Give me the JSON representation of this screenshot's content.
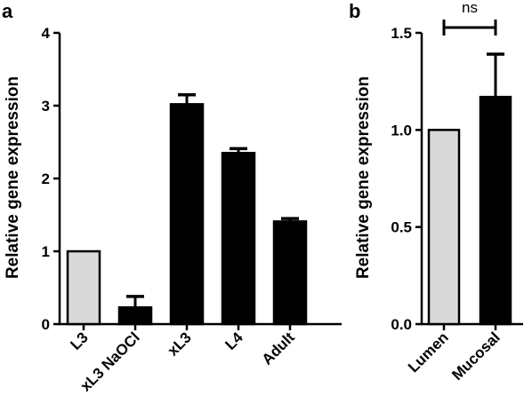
{
  "chart_data": [
    {
      "panel": "a",
      "type": "bar",
      "title": "",
      "ylabel": "Relative gene expression",
      "xlabel": "",
      "ylim": [
        0,
        4
      ],
      "yticks": [
        "0",
        "1",
        "2",
        "3",
        "4"
      ],
      "categories": [
        "L3",
        "xL3 NaOCl",
        "xL3",
        "L4",
        "Adult"
      ],
      "values": [
        1.0,
        0.23,
        3.02,
        2.35,
        1.41
      ],
      "errors": [
        0,
        0.15,
        0.13,
        0.06,
        0.04
      ],
      "colors": [
        "#d9d9d9",
        "#000000",
        "#000000",
        "#000000",
        "#000000"
      ],
      "grid": false
    },
    {
      "panel": "b",
      "type": "bar",
      "title": "",
      "ylabel": "Relative gene expression",
      "xlabel": "",
      "ylim": [
        0.0,
        1.5
      ],
      "yticks": [
        "0.0",
        "0.5",
        "1.0",
        "1.5"
      ],
      "categories": [
        "Lumen",
        "Mucosal"
      ],
      "values": [
        1.0,
        1.17
      ],
      "errors": [
        0,
        0.22
      ],
      "colors": [
        "#d9d9d9",
        "#000000"
      ],
      "significance": "ns",
      "grid": false
    }
  ]
}
